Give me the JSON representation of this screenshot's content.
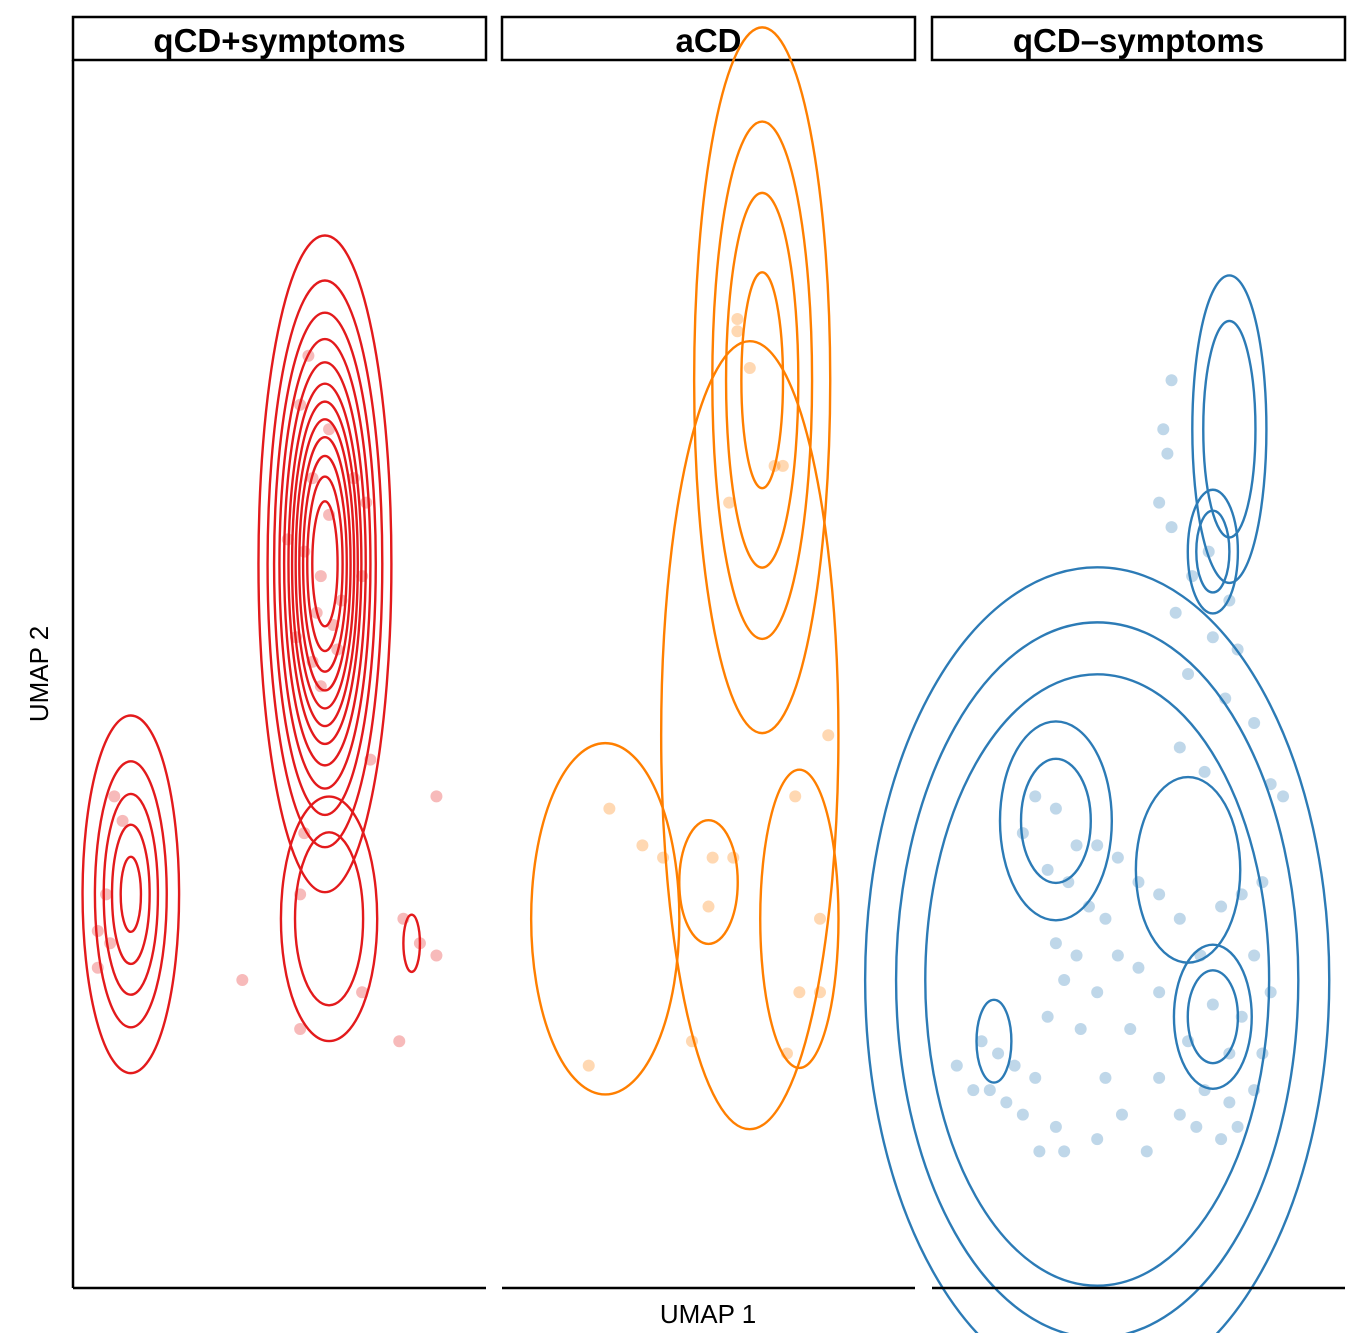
{
  "chart_data": {
    "type": "scatter",
    "subtype": "faceted scatter with 2D density contours",
    "xlabel": "UMAP 1",
    "ylabel": "UMAP 2",
    "grid": false,
    "legend": "none",
    "facets": [
      {
        "label": "qCD+symptoms",
        "color": "#e31a1c",
        "modes": [
          {
            "x": 0.61,
            "y": 0.59,
            "sx": 0.075,
            "sy": 0.125,
            "levels": [
              0.1,
              0.18,
              0.26,
              0.34,
              0.42,
              0.5,
              0.57,
              0.64,
              0.71,
              0.78,
              0.85,
              0.92
            ]
          },
          {
            "x": 0.14,
            "y": 0.32,
            "sx": 0.06,
            "sy": 0.075,
            "levels": [
              0.15,
              0.35,
              0.55,
              0.75,
              0.92
            ]
          },
          {
            "x": 0.62,
            "y": 0.3,
            "sx": 0.07,
            "sy": 0.06,
            "levels": [
              0.25,
              0.5
            ]
          },
          {
            "x": 0.82,
            "y": 0.28,
            "sx": 0.03,
            "sy": 0.035,
            "levels": [
              0.8
            ]
          }
        ],
        "points": [
          [
            0.57,
            0.76
          ],
          [
            0.55,
            0.72
          ],
          [
            0.62,
            0.7
          ],
          [
            0.58,
            0.66
          ],
          [
            0.68,
            0.66
          ],
          [
            0.71,
            0.64
          ],
          [
            0.62,
            0.63
          ],
          [
            0.52,
            0.61
          ],
          [
            0.56,
            0.6
          ],
          [
            0.6,
            0.58
          ],
          [
            0.65,
            0.56
          ],
          [
            0.59,
            0.55
          ],
          [
            0.63,
            0.54
          ],
          [
            0.7,
            0.58
          ],
          [
            0.54,
            0.53
          ],
          [
            0.58,
            0.51
          ],
          [
            0.6,
            0.49
          ],
          [
            0.64,
            0.52
          ],
          [
            0.72,
            0.43
          ],
          [
            0.56,
            0.37
          ],
          [
            0.88,
            0.4
          ],
          [
            0.1,
            0.4
          ],
          [
            0.12,
            0.38
          ],
          [
            0.08,
            0.32
          ],
          [
            0.09,
            0.28
          ],
          [
            0.06,
            0.29
          ],
          [
            0.06,
            0.26
          ],
          [
            0.55,
            0.32
          ],
          [
            0.8,
            0.3
          ],
          [
            0.84,
            0.28
          ],
          [
            0.88,
            0.27
          ],
          [
            0.7,
            0.24
          ],
          [
            0.41,
            0.25
          ],
          [
            0.55,
            0.21
          ],
          [
            0.79,
            0.2
          ]
        ]
      },
      {
        "label": "aCD",
        "color": "#ff7f00",
        "modes": [
          {
            "x": 0.63,
            "y": 0.74,
            "sx": 0.08,
            "sy": 0.14,
            "levels": [
              0.12,
              0.32,
              0.55,
              0.82
            ]
          },
          {
            "x": 0.5,
            "y": 0.33,
            "sx": 0.07,
            "sy": 0.05,
            "levels": [
              0.6
            ]
          },
          {
            "x": 0.72,
            "y": 0.3,
            "sx": 0.07,
            "sy": 0.09,
            "levels": [
              0.4
            ]
          },
          {
            "x": 0.25,
            "y": 0.3,
            "sx": 0.1,
            "sy": 0.08,
            "levels": [
              0.2
            ]
          },
          {
            "x": 0.6,
            "y": 0.45,
            "sx": 0.1,
            "sy": 0.15,
            "levels": [
              0.1
            ]
          }
        ],
        "points": [
          [
            0.57,
            0.79
          ],
          [
            0.57,
            0.78
          ],
          [
            0.6,
            0.75
          ],
          [
            0.66,
            0.67
          ],
          [
            0.68,
            0.67
          ],
          [
            0.55,
            0.64
          ],
          [
            0.79,
            0.45
          ],
          [
            0.26,
            0.39
          ],
          [
            0.71,
            0.4
          ],
          [
            0.34,
            0.36
          ],
          [
            0.39,
            0.35
          ],
          [
            0.51,
            0.35
          ],
          [
            0.56,
            0.35
          ],
          [
            0.5,
            0.31
          ],
          [
            0.77,
            0.3
          ],
          [
            0.72,
            0.24
          ],
          [
            0.77,
            0.24
          ],
          [
            0.46,
            0.2
          ],
          [
            0.69,
            0.19
          ],
          [
            0.21,
            0.18
          ]
        ]
      },
      {
        "label": "qCD–symptoms",
        "color": "#2c7bb6",
        "modes": [
          {
            "x": 0.72,
            "y": 0.7,
            "sx": 0.05,
            "sy": 0.07,
            "levels": [
              0.2,
              0.45
            ]
          },
          {
            "x": 0.68,
            "y": 0.6,
            "sx": 0.06,
            "sy": 0.05,
            "levels": [
              0.6,
              0.8
            ]
          },
          {
            "x": 0.3,
            "y": 0.38,
            "sx": 0.1,
            "sy": 0.06,
            "levels": [
              0.4,
              0.7
            ]
          },
          {
            "x": 0.62,
            "y": 0.34,
            "sx": 0.1,
            "sy": 0.06,
            "levels": [
              0.45
            ]
          },
          {
            "x": 0.68,
            "y": 0.22,
            "sx": 0.08,
            "sy": 0.05,
            "levels": [
              0.5,
              0.75
            ]
          },
          {
            "x": 0.15,
            "y": 0.2,
            "sx": 0.05,
            "sy": 0.04,
            "levels": [
              0.7
            ]
          },
          {
            "x": 0.4,
            "y": 0.25,
            "sx": 0.25,
            "sy": 0.15,
            "levels": [
              0.08,
              0.15,
              0.25
            ]
          }
        ],
        "points": [
          [
            0.58,
            0.74
          ],
          [
            0.56,
            0.7
          ],
          [
            0.57,
            0.68
          ],
          [
            0.55,
            0.64
          ],
          [
            0.58,
            0.62
          ],
          [
            0.67,
            0.6
          ],
          [
            0.63,
            0.58
          ],
          [
            0.72,
            0.56
          ],
          [
            0.59,
            0.55
          ],
          [
            0.68,
            0.53
          ],
          [
            0.74,
            0.52
          ],
          [
            0.62,
            0.5
          ],
          [
            0.71,
            0.48
          ],
          [
            0.78,
            0.46
          ],
          [
            0.6,
            0.44
          ],
          [
            0.66,
            0.42
          ],
          [
            0.82,
            0.41
          ],
          [
            0.85,
            0.4
          ],
          [
            0.25,
            0.4
          ],
          [
            0.3,
            0.39
          ],
          [
            0.22,
            0.37
          ],
          [
            0.35,
            0.36
          ],
          [
            0.4,
            0.36
          ],
          [
            0.45,
            0.35
          ],
          [
            0.28,
            0.34
          ],
          [
            0.33,
            0.33
          ],
          [
            0.5,
            0.33
          ],
          [
            0.55,
            0.32
          ],
          [
            0.38,
            0.31
          ],
          [
            0.42,
            0.3
          ],
          [
            0.6,
            0.3
          ],
          [
            0.7,
            0.31
          ],
          [
            0.75,
            0.32
          ],
          [
            0.8,
            0.33
          ],
          [
            0.3,
            0.28
          ],
          [
            0.35,
            0.27
          ],
          [
            0.45,
            0.27
          ],
          [
            0.5,
            0.26
          ],
          [
            0.65,
            0.27
          ],
          [
            0.78,
            0.27
          ],
          [
            0.32,
            0.25
          ],
          [
            0.4,
            0.24
          ],
          [
            0.55,
            0.24
          ],
          [
            0.68,
            0.23
          ],
          [
            0.75,
            0.22
          ],
          [
            0.82,
            0.24
          ],
          [
            0.28,
            0.22
          ],
          [
            0.36,
            0.21
          ],
          [
            0.48,
            0.21
          ],
          [
            0.62,
            0.2
          ],
          [
            0.72,
            0.19
          ],
          [
            0.8,
            0.19
          ],
          [
            0.12,
            0.2
          ],
          [
            0.16,
            0.19
          ],
          [
            0.2,
            0.18
          ],
          [
            0.25,
            0.17
          ],
          [
            0.1,
            0.16
          ],
          [
            0.14,
            0.16
          ],
          [
            0.18,
            0.15
          ],
          [
            0.42,
            0.17
          ],
          [
            0.55,
            0.17
          ],
          [
            0.66,
            0.16
          ],
          [
            0.72,
            0.15
          ],
          [
            0.78,
            0.16
          ],
          [
            0.06,
            0.18
          ],
          [
            0.22,
            0.14
          ],
          [
            0.3,
            0.13
          ],
          [
            0.46,
            0.14
          ],
          [
            0.6,
            0.14
          ],
          [
            0.64,
            0.13
          ],
          [
            0.7,
            0.12
          ],
          [
            0.74,
            0.13
          ],
          [
            0.26,
            0.11
          ],
          [
            0.32,
            0.11
          ],
          [
            0.4,
            0.12
          ],
          [
            0.52,
            0.11
          ]
        ]
      }
    ]
  }
}
